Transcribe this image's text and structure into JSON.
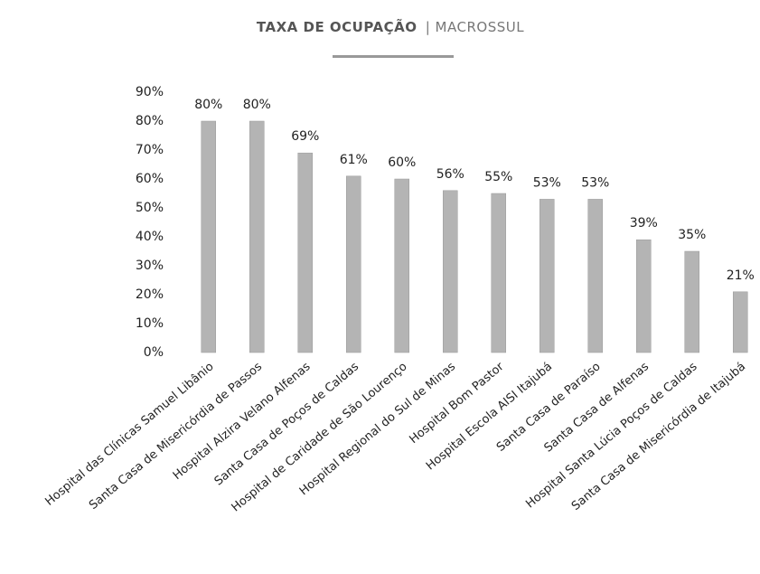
{
  "chart_data": {
    "type": "bar",
    "title": "TAXA DE OCUPAÇÃO",
    "subtitle": "| MACROSSUL",
    "categories": [
      "Hospital das Clínicas Samuel Libânio",
      "Santa Casa de Misericórdia de Passos",
      "Hospital Alzira Velano Alfenas",
      "Santa Casa de Poços de Caldas",
      "Hospital de Caridade de São Lourenço",
      "Hospital Regional do Sul de Minas",
      "Hospital Bom Pastor",
      "Hospital Escola AISI Itajubá",
      "Santa Casa de Paraíso",
      "Santa Casa de Alfenas",
      "Hospital Santa Lúcia Poços de Caldas",
      "Santa Casa de Misericórdia de Itajubá"
    ],
    "values": [
      80,
      80,
      69,
      61,
      60,
      56,
      55,
      53,
      53,
      39,
      35,
      21
    ],
    "value_labels": [
      "80%",
      "80%",
      "69%",
      "61%",
      "60%",
      "56%",
      "55%",
      "53%",
      "53%",
      "39%",
      "35%",
      "21%"
    ],
    "color": "#b4b4b4",
    "ylim": [
      0,
      90
    ],
    "yticks": [
      {
        "value": 0,
        "label": "0%"
      },
      {
        "value": 10,
        "label": "10%"
      },
      {
        "value": 20,
        "label": "20%"
      },
      {
        "value": 30,
        "label": "30%"
      },
      {
        "value": 40,
        "label": "40%"
      },
      {
        "value": 50,
        "label": "50%"
      },
      {
        "value": 60,
        "label": "60%"
      },
      {
        "value": 70,
        "label": "70%"
      },
      {
        "value": 80,
        "label": "80%"
      },
      {
        "value": 90,
        "label": "90%"
      }
    ],
    "grid": false
  }
}
